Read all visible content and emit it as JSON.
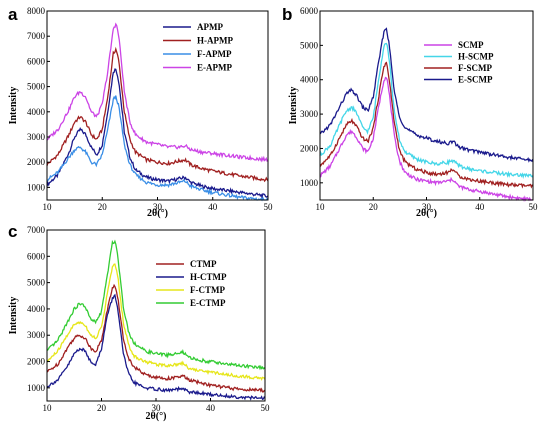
{
  "chart_data": [
    {
      "panel": "a",
      "type": "line",
      "xlabel": "2θ(°)",
      "ylabel": "Intensity",
      "xlim": [
        10,
        50
      ],
      "ylim": [
        500,
        8000
      ],
      "xticks": [
        10,
        20,
        30,
        40,
        50
      ],
      "yticks": [
        1000,
        2000,
        3000,
        4000,
        5000,
        6000,
        7000,
        8000
      ],
      "legend_position": "top-right",
      "series": [
        {
          "name": "APMP",
          "color": "#1a1a8c",
          "x": [
            10,
            12,
            14,
            15,
            16,
            17,
            18,
            19,
            20,
            21,
            22,
            22.5,
            23,
            24,
            25,
            26,
            28,
            30,
            32,
            34,
            35,
            36,
            38,
            40,
            45,
            50
          ],
          "y": [
            1100,
            1500,
            2400,
            3000,
            3300,
            3100,
            2600,
            2300,
            2700,
            4000,
            5600,
            5700,
            5200,
            3200,
            2200,
            1700,
            1400,
            1300,
            1250,
            1350,
            1400,
            1200,
            1050,
            950,
            800,
            650
          ]
        },
        {
          "name": "H-APMP",
          "color": "#a02020",
          "x": [
            10,
            12,
            14,
            15,
            16,
            17,
            18,
            19,
            20,
            21,
            22,
            22.5,
            23,
            24,
            25,
            26,
            28,
            30,
            32,
            34,
            35,
            36,
            38,
            40,
            45,
            50
          ],
          "y": [
            1900,
            2300,
            3100,
            3600,
            3800,
            3600,
            3100,
            2900,
            3300,
            4600,
            6300,
            6500,
            6000,
            4000,
            2900,
            2400,
            2100,
            2000,
            1950,
            2050,
            2100,
            1900,
            1750,
            1650,
            1450,
            1300
          ]
        },
        {
          "name": "F-APMP",
          "color": "#3a8ee6",
          "x": [
            10,
            12,
            14,
            15,
            16,
            17,
            18,
            19,
            20,
            21,
            22,
            22.5,
            23,
            24,
            25,
            26,
            28,
            30,
            32,
            34,
            35,
            36,
            38,
            40,
            45,
            50
          ],
          "y": [
            1300,
            1600,
            2200,
            2500,
            2600,
            2400,
            2000,
            1900,
            2300,
            3300,
            4500,
            4600,
            4200,
            2700,
            1900,
            1500,
            1200,
            1100,
            1100,
            1200,
            1250,
            1050,
            900,
            800,
            600,
            500
          ]
        },
        {
          "name": "E-APMP",
          "color": "#cc44e6",
          "x": [
            10,
            12,
            14,
            15,
            16,
            17,
            18,
            19,
            20,
            21,
            22,
            22.5,
            23,
            24,
            25,
            26,
            28,
            30,
            32,
            34,
            35,
            36,
            38,
            40,
            45,
            50
          ],
          "y": [
            2900,
            3300,
            4100,
            4600,
            4800,
            4600,
            4000,
            3800,
            4300,
            5600,
            7300,
            7500,
            7000,
            4800,
            3600,
            3100,
            2800,
            2700,
            2600,
            2600,
            2650,
            2500,
            2400,
            2350,
            2200,
            2100
          ]
        }
      ]
    },
    {
      "panel": "b",
      "type": "line",
      "xlabel": "2θ(°)",
      "ylabel": "Intensity",
      "xlim": [
        10,
        50
      ],
      "ylim": [
        500,
        6000
      ],
      "xticks": [
        10,
        20,
        30,
        40,
        50
      ],
      "yticks": [
        1000,
        2000,
        3000,
        4000,
        5000,
        6000
      ],
      "legend_position": "top-right",
      "series": [
        {
          "name": "SCMP",
          "color": "#cc44e6",
          "x": [
            10,
            12,
            14,
            15,
            16,
            17,
            18,
            19,
            20,
            21,
            22,
            22.5,
            23,
            24,
            25,
            26,
            28,
            30,
            32,
            34,
            35,
            36,
            38,
            40,
            45,
            50
          ],
          "y": [
            1200,
            1500,
            2100,
            2400,
            2500,
            2300,
            2000,
            1900,
            2300,
            3200,
            4000,
            4100,
            3600,
            2300,
            1600,
            1300,
            1100,
            1050,
            1000,
            1050,
            1100,
            900,
            800,
            750,
            600,
            500
          ]
        },
        {
          "name": "H-SCMP",
          "color": "#44d6e8",
          "x": [
            10,
            12,
            14,
            15,
            16,
            17,
            18,
            19,
            20,
            21,
            22,
            22.5,
            23,
            24,
            25,
            26,
            28,
            30,
            32,
            34,
            35,
            36,
            38,
            40,
            45,
            50
          ],
          "y": [
            1800,
            2100,
            2800,
            3100,
            3200,
            3000,
            2600,
            2500,
            2900,
            4000,
            5000,
            5100,
            4600,
            3000,
            2200,
            1900,
            1700,
            1600,
            1550,
            1600,
            1650,
            1500,
            1400,
            1350,
            1250,
            1200
          ]
        },
        {
          "name": "F-SCMP",
          "color": "#a02020",
          "x": [
            10,
            12,
            14,
            15,
            16,
            17,
            18,
            19,
            20,
            21,
            22,
            22.5,
            23,
            24,
            25,
            26,
            28,
            30,
            32,
            34,
            35,
            36,
            38,
            40,
            45,
            50
          ],
          "y": [
            1500,
            1800,
            2400,
            2700,
            2800,
            2600,
            2300,
            2200,
            2600,
            3500,
            4400,
            4500,
            4000,
            2700,
            1900,
            1600,
            1400,
            1300,
            1250,
            1300,
            1400,
            1200,
            1100,
            1050,
            950,
            900
          ]
        },
        {
          "name": "E-SCMP",
          "color": "#1a1a8c",
          "x": [
            10,
            12,
            14,
            15,
            16,
            17,
            18,
            19,
            20,
            21,
            22,
            22.5,
            23,
            24,
            25,
            26,
            28,
            30,
            32,
            34,
            35,
            36,
            38,
            40,
            45,
            50
          ],
          "y": [
            2400,
            2700,
            3300,
            3600,
            3700,
            3500,
            3200,
            3100,
            3500,
            4500,
            5400,
            5500,
            5000,
            3600,
            2900,
            2600,
            2400,
            2300,
            2200,
            2150,
            2200,
            2050,
            1950,
            1900,
            1750,
            1650
          ]
        }
      ]
    },
    {
      "panel": "c",
      "type": "line",
      "xlabel": "2θ(°)",
      "ylabel": "Intensity",
      "xlim": [
        10,
        50
      ],
      "ylim": [
        500,
        7000
      ],
      "xticks": [
        10,
        20,
        30,
        40,
        50
      ],
      "yticks": [
        1000,
        2000,
        3000,
        4000,
        5000,
        6000,
        7000
      ],
      "legend_position": "top-right",
      "series": [
        {
          "name": "CTMP",
          "color": "#a02020",
          "x": [
            10,
            12,
            14,
            15,
            16,
            17,
            18,
            19,
            20,
            21,
            22,
            22.5,
            23,
            24,
            25,
            26,
            28,
            30,
            32,
            34,
            35,
            36,
            38,
            40,
            45,
            50
          ],
          "y": [
            1600,
            1900,
            2600,
            2900,
            3000,
            2900,
            2500,
            2400,
            2800,
            3900,
            4800,
            4900,
            4400,
            2900,
            2100,
            1800,
            1500,
            1400,
            1350,
            1400,
            1450,
            1300,
            1200,
            1100,
            950,
            900
          ]
        },
        {
          "name": "H-CTMP",
          "color": "#1a1a8c",
          "x": [
            10,
            12,
            14,
            15,
            16,
            17,
            18,
            19,
            20,
            21,
            22,
            22.5,
            23,
            24,
            25,
            26,
            28,
            30,
            32,
            34,
            35,
            36,
            38,
            40,
            45,
            50
          ],
          "y": [
            1050,
            1300,
            1900,
            2300,
            2500,
            2400,
            2000,
            1900,
            2500,
            3700,
            4400,
            4500,
            4000,
            2300,
            1500,
            1200,
            1000,
            950,
            900,
            950,
            950,
            850,
            800,
            750,
            650,
            600
          ]
        },
        {
          "name": "F-CTMP",
          "color": "#e6e61a",
          "x": [
            10,
            12,
            14,
            15,
            16,
            17,
            18,
            19,
            20,
            21,
            22,
            22.5,
            23,
            24,
            25,
            26,
            28,
            30,
            32,
            34,
            35,
            36,
            38,
            40,
            45,
            50
          ],
          "y": [
            2000,
            2400,
            3100,
            3400,
            3500,
            3400,
            3000,
            2900,
            3300,
            4500,
            5600,
            5700,
            5200,
            3500,
            2600,
            2200,
            2000,
            1900,
            1850,
            1900,
            1950,
            1750,
            1650,
            1600,
            1450,
            1350
          ]
        },
        {
          "name": "E-CTMP",
          "color": "#33cc33",
          "x": [
            10,
            12,
            14,
            15,
            16,
            17,
            18,
            19,
            20,
            21,
            22,
            22.5,
            23,
            24,
            25,
            26,
            28,
            30,
            32,
            34,
            35,
            36,
            38,
            40,
            45,
            50
          ],
          "y": [
            2400,
            2800,
            3600,
            4000,
            4200,
            4100,
            3600,
            3500,
            3900,
            5200,
            6500,
            6600,
            6000,
            4100,
            3100,
            2700,
            2400,
            2300,
            2250,
            2300,
            2350,
            2150,
            2050,
            2000,
            1850,
            1750
          ]
        }
      ]
    }
  ]
}
